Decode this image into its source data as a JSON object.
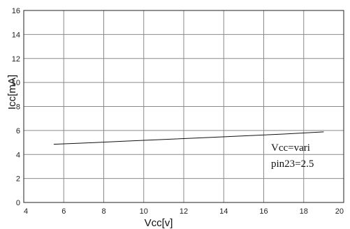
{
  "chart_data": {
    "type": "line",
    "title": "",
    "xlabel": "Vcc[v]",
    "ylabel": "Icc[mA]",
    "xlim": [
      4,
      20
    ],
    "ylim": [
      0,
      16
    ],
    "xticks": [
      4,
      6,
      8,
      10,
      12,
      14,
      16,
      18,
      20
    ],
    "yticks": [
      0,
      2,
      4,
      6,
      8,
      10,
      12,
      14,
      16
    ],
    "grid": true,
    "series": [
      {
        "x": [
          5.5,
          7,
          9,
          11,
          13,
          15,
          17,
          19
        ],
        "y": [
          4.85,
          4.95,
          5.1,
          5.25,
          5.4,
          5.55,
          5.7,
          5.88
        ]
      }
    ],
    "annotations": [
      "Vcc=vari",
      "pin23=2.5"
    ]
  }
}
